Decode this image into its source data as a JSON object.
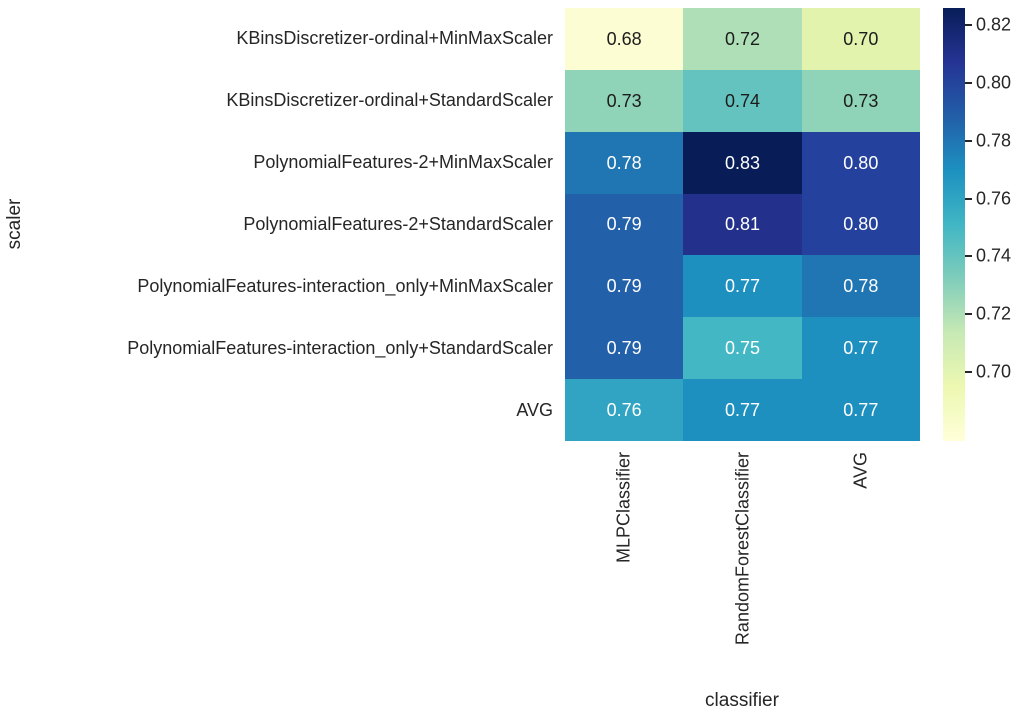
{
  "chart_data": {
    "type": "heatmap",
    "xlabel": "classifier",
    "ylabel": "scaler",
    "colormap": "YlGnBu",
    "columns": [
      "MLPClassifier",
      "RandomForestClassifier",
      "AVG"
    ],
    "rows": [
      {
        "label": "KBinsDiscretizer-ordinal+MinMaxScaler",
        "cells": [
          {
            "v": 0.68,
            "text": "0.68",
            "bg": "#fcfdd2",
            "fg": "dark"
          },
          {
            "v": 0.72,
            "text": "0.72",
            "bg": "#aedfb6",
            "fg": "dark"
          },
          {
            "v": 0.7,
            "text": "0.70",
            "bg": "#e2f3ae",
            "fg": "dark"
          }
        ]
      },
      {
        "label": "KBinsDiscretizer-ordinal+StandardScaler",
        "cells": [
          {
            "v": 0.73,
            "text": "0.73",
            "bg": "#8fd3b8",
            "fg": "dark"
          },
          {
            "v": 0.74,
            "text": "0.74",
            "bg": "#65c3bf",
            "fg": "dark"
          },
          {
            "v": 0.73,
            "text": "0.73",
            "bg": "#8fd3b8",
            "fg": "dark"
          }
        ]
      },
      {
        "label": "PolynomialFeatures-2+MinMaxScaler",
        "cells": [
          {
            "v": 0.78,
            "text": "0.78",
            "bg": "#2075b3",
            "fg": "light"
          },
          {
            "v": 0.83,
            "text": "0.83",
            "bg": "#081d58",
            "fg": "light"
          },
          {
            "v": 0.8,
            "text": "0.80",
            "bg": "#24429d",
            "fg": "light"
          }
        ]
      },
      {
        "label": "PolynomialFeatures-2+StandardScaler",
        "cells": [
          {
            "v": 0.79,
            "text": "0.79",
            "bg": "#2260a9",
            "fg": "light"
          },
          {
            "v": 0.81,
            "text": "0.81",
            "bg": "#23318c",
            "fg": "light"
          },
          {
            "v": 0.8,
            "text": "0.80",
            "bg": "#24429d",
            "fg": "light"
          }
        ]
      },
      {
        "label": "PolynomialFeatures-interaction_only+MinMaxScaler",
        "cells": [
          {
            "v": 0.79,
            "text": "0.79",
            "bg": "#2260a9",
            "fg": "light"
          },
          {
            "v": 0.77,
            "text": "0.77",
            "bg": "#1d90c0",
            "fg": "light"
          },
          {
            "v": 0.78,
            "text": "0.78",
            "bg": "#2075b3",
            "fg": "light"
          }
        ]
      },
      {
        "label": "PolynomialFeatures-interaction_only+StandardScaler",
        "cells": [
          {
            "v": 0.79,
            "text": "0.79",
            "bg": "#2260a9",
            "fg": "light"
          },
          {
            "v": 0.75,
            "text": "0.75",
            "bg": "#44b7c4",
            "fg": "light"
          },
          {
            "v": 0.77,
            "text": "0.77",
            "bg": "#1d90c0",
            "fg": "light"
          }
        ]
      },
      {
        "label": "AVG",
        "cells": [
          {
            "v": 0.76,
            "text": "0.76",
            "bg": "#30a4c2",
            "fg": "light"
          },
          {
            "v": 0.77,
            "text": "0.77",
            "bg": "#1d90c0",
            "fg": "light"
          },
          {
            "v": 0.77,
            "text": "0.77",
            "bg": "#1d90c0",
            "fg": "light"
          }
        ]
      }
    ],
    "colorbar": {
      "ticks": [
        "0.82",
        "0.80",
        "0.78",
        "0.76",
        "0.74",
        "0.72",
        "0.70"
      ],
      "scale_min": 0.676,
      "scale_max": 0.826,
      "gradient_top_to_bottom": [
        "#081d58",
        "#253494",
        "#225ea8",
        "#1d91c0",
        "#41b6c4",
        "#7fcdbb",
        "#c7e9b4",
        "#edf8b1",
        "#ffffd9"
      ]
    }
  }
}
